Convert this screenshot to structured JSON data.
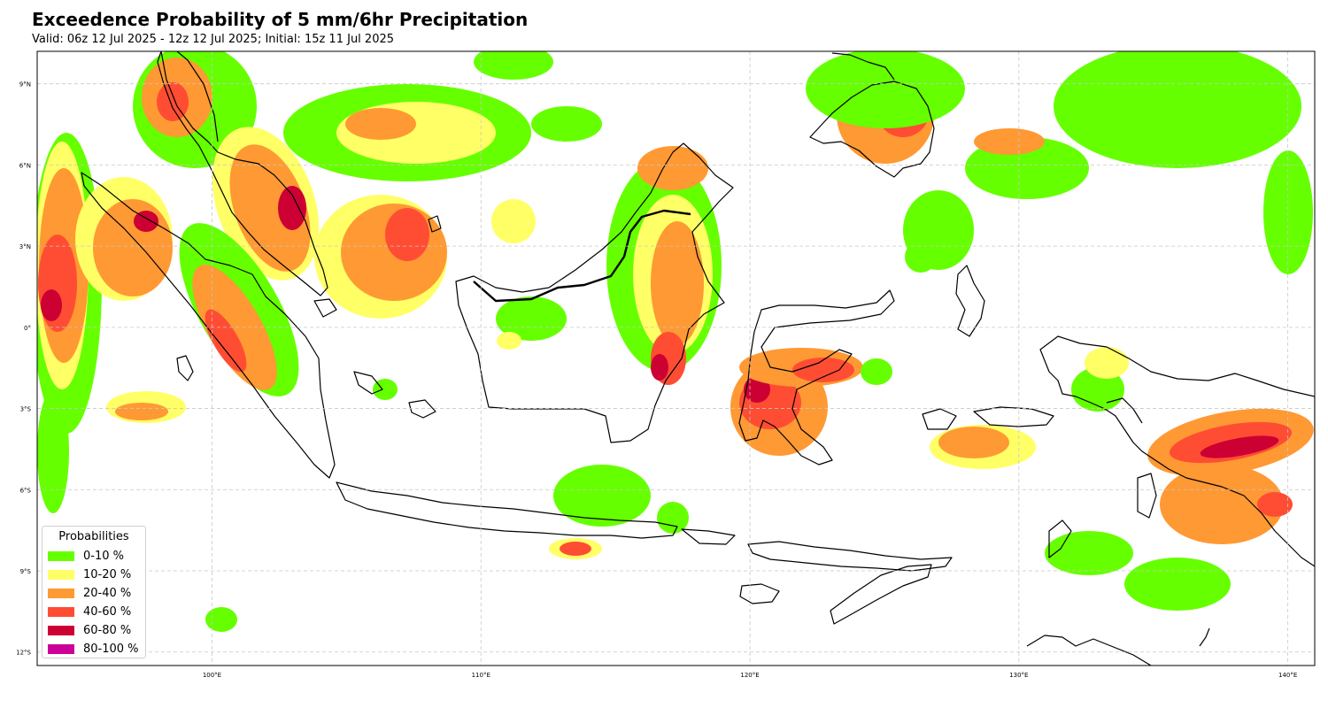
{
  "title": "Exceedence Probability of 5 mm/6hr Precipitation",
  "subtitle": "Valid: 06z 12 Jul 2025 - 12z 12 Jul 2025; Initial: 15z 11 Jul 2025",
  "map": {
    "lon_range": [
      93.5,
      141.0
    ],
    "lat_range": [
      -12.5,
      10.2
    ],
    "lon_ticks": [
      {
        "value": 100,
        "label": "100°E"
      },
      {
        "value": 110,
        "label": "110°E"
      },
      {
        "value": 120,
        "label": "120°E"
      },
      {
        "value": 130,
        "label": "130°E"
      },
      {
        "value": 140,
        "label": "140°E"
      }
    ],
    "lat_ticks": [
      {
        "value": 9,
        "label": "9°N"
      },
      {
        "value": 6,
        "label": "6°N"
      },
      {
        "value": 3,
        "label": "3°N"
      },
      {
        "value": 0,
        "label": "0°"
      },
      {
        "value": -3,
        "label": "3°S"
      },
      {
        "value": -6,
        "label": "6°S"
      },
      {
        "value": -9,
        "label": "9°S"
      },
      {
        "value": -12,
        "label": "12°S"
      }
    ],
    "gridlines": true,
    "coastline_color": "#000000"
  },
  "legend": {
    "title": "Probabilities",
    "placement": "lower-left",
    "items": [
      {
        "label": "0-10 %",
        "color": "#66ff00"
      },
      {
        "label": "10-20 %",
        "color": "#ffff66"
      },
      {
        "label": "20-40 %",
        "color": "#ff9933"
      },
      {
        "label": "40-60 %",
        "color": "#ff4d33"
      },
      {
        "label": "60-80 %",
        "color": "#cc0033"
      },
      {
        "label": "80-100 %",
        "color": "#cc0099"
      }
    ]
  }
}
